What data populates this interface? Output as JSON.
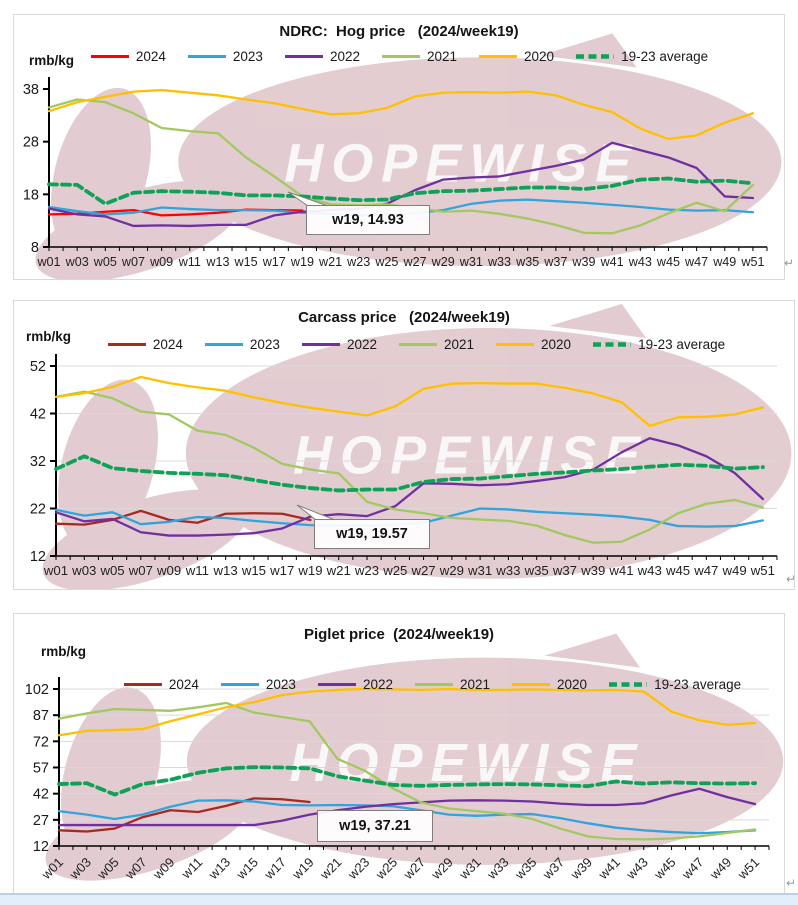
{
  "page": {
    "background": "#ffffff",
    "return_mark": "↵",
    "footer_strip_color": "#e3eefb"
  },
  "watermark": {
    "text": "HOPEWISE",
    "shape_color": "#b9818d",
    "shape_opacity": 0.4,
    "text_color": "#ffffff",
    "text_opacity": 0.85
  },
  "chart_data": [
    {
      "type": "line",
      "title": "NDRC:  Hog price   (2024/week19)",
      "ylabel": "rmb/kg",
      "xlabel": "",
      "ylim": [
        8,
        38
      ],
      "yticks": [
        8,
        18,
        28,
        38
      ],
      "grid": false,
      "weeks_total": 52,
      "xlabel_style": "spaced",
      "legend_position": "top",
      "callout": "w19, 14.93",
      "x_tick_labels": [
        "w01",
        "w03",
        "w05",
        "w07",
        "w09",
        "w11",
        "w13",
        "w15",
        "w17",
        "w19",
        "w21",
        "w23",
        "w25",
        "w27",
        "w29",
        "w31",
        "w33",
        "w35",
        "w37",
        "w39",
        "w41",
        "w43",
        "w45",
        "w47",
        "w49",
        "w51"
      ],
      "series": [
        {
          "name": "2024",
          "color": "#ff0000",
          "dash": false,
          "start_week": 1,
          "week_step": 2,
          "values": [
            14.2,
            14.3,
            14.7,
            15.0,
            14.0,
            14.2,
            14.5,
            15.1,
            15.0,
            14.93
          ]
        },
        {
          "name": "2023",
          "color": "#33a3dc",
          "dash": false,
          "start_week": 1,
          "week_step": 2,
          "values": [
            15.6,
            14.8,
            14.2,
            14.5,
            15.5,
            15.2,
            15.0,
            15.0,
            14.9,
            14.5,
            14.3,
            14.0,
            14.2,
            14.4,
            15.0,
            16.2,
            16.8,
            17.0,
            16.7,
            16.4,
            16.0,
            15.6,
            15.1,
            14.9,
            15.0,
            14.6
          ]
        },
        {
          "name": "2022",
          "color": "#7030a0",
          "dash": false,
          "start_week": 1,
          "week_step": 2,
          "values": [
            15.3,
            14.2,
            13.8,
            12.0,
            12.1,
            12.0,
            12.2,
            12.2,
            14.0,
            14.7,
            15.0,
            15.3,
            16.2,
            18.8,
            20.8,
            21.2,
            21.4,
            22.4,
            23.4,
            24.6,
            27.8,
            26.4,
            25.0,
            23.0,
            17.6,
            17.3
          ]
        },
        {
          "name": "2021",
          "color": "#a2c861",
          "dash": false,
          "start_week": 1,
          "week_step": 2,
          "values": [
            34.5,
            36.0,
            35.5,
            33.4,
            30.6,
            30.0,
            29.6,
            25.0,
            21.4,
            17.6,
            16.1,
            15.9,
            16.1,
            15.4,
            14.7,
            14.9,
            14.3,
            13.4,
            12.2,
            10.7,
            10.6,
            12.1,
            14.4,
            16.4,
            14.8,
            19.8
          ]
        },
        {
          "name": "2020",
          "color": "#ffc000",
          "dash": false,
          "start_week": 1,
          "week_step": 2,
          "values": [
            33.8,
            35.5,
            36.5,
            37.5,
            37.8,
            37.3,
            36.8,
            36.0,
            35.3,
            34.2,
            33.2,
            33.4,
            34.4,
            36.6,
            37.3,
            37.4,
            37.3,
            37.5,
            36.8,
            35.0,
            33.6,
            30.5,
            28.5,
            29.2,
            31.6,
            33.4
          ]
        },
        {
          "name": "19-23 average",
          "color": "#0ea157",
          "dash": true,
          "start_week": 1,
          "week_step": 2,
          "values": [
            19.9,
            19.8,
            16.2,
            18.3,
            18.6,
            18.5,
            18.3,
            17.8,
            17.8,
            17.6,
            17.2,
            16.9,
            17.0,
            18.2,
            18.6,
            18.7,
            19.0,
            19.3,
            19.3,
            19.0,
            19.6,
            20.8,
            21.0,
            20.4,
            20.6,
            20.1
          ]
        }
      ]
    },
    {
      "type": "line",
      "title": "Carcass price   (2024/week19)",
      "ylabel": "rmb/kg",
      "xlabel": "",
      "ylim": [
        12,
        52
      ],
      "yticks": [
        12,
        22,
        32,
        42,
        52
      ],
      "grid": true,
      "weeks_total": 52,
      "xlabel_style": "packed",
      "legend_position": "top",
      "callout": "w19, 19.57",
      "x_tick_labels": [
        "w01",
        "w03",
        "w05",
        "w07",
        "w09",
        "w11",
        "w13",
        "w15",
        "w17",
        "w19",
        "w21",
        "w23",
        "w25",
        "w27",
        "w29",
        "w31",
        "w33",
        "w35",
        "w37",
        "w39",
        "w41",
        "w43",
        "w45",
        "w47",
        "w49",
        "w51"
      ],
      "series": [
        {
          "name": "2024",
          "color": "#a52a21",
          "dash": false,
          "start_week": 1,
          "week_step": 2,
          "values": [
            18.8,
            18.6,
            19.6,
            21.5,
            19.6,
            19.0,
            20.9,
            21.0,
            20.9,
            19.57
          ]
        },
        {
          "name": "2023",
          "color": "#33a3dc",
          "dash": false,
          "start_week": 1,
          "week_step": 2,
          "values": [
            21.7,
            20.5,
            21.2,
            18.7,
            19.2,
            20.2,
            20.0,
            19.4,
            18.9,
            18.5,
            18.4,
            18.4,
            18.6,
            19.0,
            20.5,
            22.0,
            21.8,
            21.3,
            21.0,
            20.7,
            20.3,
            19.6,
            18.3,
            18.2,
            18.3,
            19.5
          ]
        },
        {
          "name": "2022",
          "color": "#7030a0",
          "dash": false,
          "start_week": 1,
          "week_step": 2,
          "values": [
            21.2,
            19.3,
            19.8,
            17.0,
            16.3,
            16.3,
            16.5,
            16.8,
            17.8,
            20.3,
            20.8,
            20.4,
            22.5,
            27.3,
            27.2,
            26.9,
            27.1,
            27.8,
            28.6,
            30.2,
            33.8,
            36.8,
            35.3,
            33.0,
            29.5,
            24.0
          ]
        },
        {
          "name": "2021",
          "color": "#a2c861",
          "dash": false,
          "start_week": 1,
          "week_step": 2,
          "values": [
            45.5,
            46.6,
            45.2,
            42.4,
            41.8,
            38.4,
            37.5,
            34.8,
            31.4,
            30.2,
            29.4,
            23.4,
            21.8,
            21.0,
            20.0,
            19.7,
            19.4,
            18.4,
            16.4,
            14.8,
            15.0,
            17.6,
            21.0,
            23.0,
            23.8,
            22.2
          ]
        },
        {
          "name": "2020",
          "color": "#ffc000",
          "dash": false,
          "start_week": 1,
          "week_step": 2,
          "values": [
            45.5,
            46.3,
            47.6,
            49.7,
            48.4,
            47.5,
            46.8,
            45.4,
            44.2,
            43.2,
            42.4,
            41.6,
            43.5,
            47.2,
            48.3,
            48.4,
            48.3,
            48.3,
            47.4,
            46.2,
            44.4,
            39.4,
            41.2,
            41.3,
            41.8,
            43.3
          ]
        },
        {
          "name": "19-23 average",
          "color": "#0ea157",
          "dash": true,
          "start_week": 1,
          "week_step": 2,
          "values": [
            30.3,
            33.0,
            30.5,
            29.9,
            29.5,
            29.3,
            29.0,
            28.0,
            27.0,
            26.3,
            25.8,
            26.0,
            26.0,
            27.6,
            28.2,
            28.3,
            28.8,
            29.3,
            29.6,
            30.0,
            30.3,
            30.8,
            31.2,
            31.0,
            30.4,
            30.7
          ]
        }
      ]
    },
    {
      "type": "line",
      "title": "Piglet price  (2024/week19)",
      "ylabel": "rmb/kg",
      "xlabel": "",
      "ylim": [
        12,
        102
      ],
      "yticks": [
        12,
        27,
        42,
        57,
        72,
        87,
        102
      ],
      "grid": true,
      "weeks_total": 52,
      "xlabel_style": "rotated",
      "legend_position": "overlay",
      "callout": "w19, 37.21",
      "x_tick_labels": [
        "w01",
        "w03",
        "w05",
        "w07",
        "w09",
        "w11",
        "w13",
        "w15",
        "w17",
        "w19",
        "w21",
        "w23",
        "w25",
        "w27",
        "w29",
        "w31",
        "w33",
        "w35",
        "w37",
        "w39",
        "w41",
        "w43",
        "w45",
        "w47",
        "w49",
        "w51"
      ],
      "series": [
        {
          "name": "2024",
          "color": "#a52a21",
          "dash": false,
          "start_week": 1,
          "week_step": 2,
          "values": [
            21.0,
            20.3,
            22.0,
            28.5,
            32.5,
            31.5,
            35.0,
            39.3,
            38.8,
            37.21
          ]
        },
        {
          "name": "2023",
          "color": "#33a3dc",
          "dash": false,
          "start_week": 1,
          "week_step": 2,
          "values": [
            32.0,
            30.0,
            27.5,
            30.0,
            34.5,
            38.0,
            38.2,
            37.5,
            35.5,
            35.3,
            35.5,
            35.3,
            34.8,
            32.5,
            30.0,
            29.3,
            30.0,
            30.3,
            28.0,
            25.0,
            22.5,
            21.0,
            20.0,
            19.3,
            20.0,
            21.0
          ]
        },
        {
          "name": "2022",
          "color": "#7030a0",
          "dash": false,
          "start_week": 1,
          "week_step": 2,
          "values": [
            24.0,
            24.0,
            24.0,
            24.0,
            24.0,
            24.0,
            24.0,
            24.0,
            26.5,
            30.0,
            32.5,
            34.5,
            36.0,
            37.0,
            38.0,
            38.2,
            38.0,
            37.5,
            36.3,
            35.5,
            35.5,
            36.5,
            41.0,
            44.8,
            40.0,
            36.0
          ]
        },
        {
          "name": "2021",
          "color": "#a2c861",
          "dash": false,
          "start_week": 1,
          "week_step": 2,
          "values": [
            85.0,
            88.0,
            90.5,
            90.0,
            89.5,
            91.5,
            94.0,
            88.5,
            86.0,
            83.5,
            62.0,
            55.0,
            45.0,
            37.0,
            33.5,
            32.0,
            30.5,
            27.5,
            22.0,
            17.5,
            16.0,
            15.8,
            16.3,
            17.5,
            19.5,
            21.5
          ]
        },
        {
          "name": "2020",
          "color": "#ffc000",
          "dash": false,
          "start_week": 1,
          "week_step": 2,
          "values": [
            75.5,
            78.0,
            78.5,
            79.0,
            83.5,
            87.5,
            91.5,
            94.5,
            98.5,
            100.5,
            101.5,
            102.0,
            101.8,
            101.5,
            102.0,
            101.5,
            101.5,
            101.8,
            101.5,
            101.3,
            101.5,
            100.5,
            89.0,
            84.0,
            81.5,
            82.5
          ]
        },
        {
          "name": "19-23 average",
          "color": "#0ea157",
          "dash": true,
          "start_week": 1,
          "week_step": 2,
          "values": [
            47.5,
            48.0,
            41.5,
            47.5,
            50.0,
            54.0,
            56.5,
            57.2,
            57.0,
            56.5,
            52.0,
            49.5,
            47.0,
            46.5,
            47.0,
            47.3,
            47.5,
            47.3,
            46.8,
            46.3,
            49.0,
            47.8,
            48.5,
            48.0,
            47.8,
            48.0
          ]
        }
      ]
    }
  ]
}
